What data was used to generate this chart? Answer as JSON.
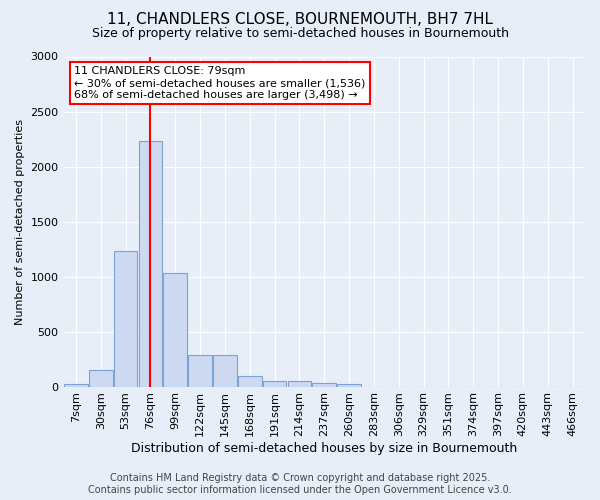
{
  "title": "11, CHANDLERS CLOSE, BOURNEMOUTH, BH7 7HL",
  "subtitle": "Size of property relative to semi-detached houses in Bournemouth",
  "xlabel": "Distribution of semi-detached houses by size in Bournemouth",
  "ylabel": "Number of semi-detached properties",
  "categories": [
    "7sqm",
    "30sqm",
    "53sqm",
    "76sqm",
    "99sqm",
    "122sqm",
    "145sqm",
    "168sqm",
    "191sqm",
    "214sqm",
    "237sqm",
    "260sqm",
    "283sqm",
    "306sqm",
    "329sqm",
    "351sqm",
    "374sqm",
    "397sqm",
    "420sqm",
    "443sqm",
    "466sqm"
  ],
  "values": [
    20,
    150,
    1235,
    2230,
    1030,
    290,
    290,
    100,
    55,
    55,
    30,
    20,
    0,
    0,
    0,
    0,
    0,
    0,
    0,
    0,
    0
  ],
  "bar_color": "#ccd9f0",
  "bar_edge_color": "#7ba4d4",
  "vline_x_index": 3,
  "vline_color": "red",
  "annotation_title": "11 CHANDLERS CLOSE: 79sqm",
  "annotation_line1": "← 30% of semi-detached houses are smaller (1,536)",
  "annotation_line2": "68% of semi-detached houses are larger (3,498) →",
  "annotation_box_color": "red",
  "footer1": "Contains HM Land Registry data © Crown copyright and database right 2025.",
  "footer2": "Contains public sector information licensed under the Open Government Licence v3.0.",
  "bg_color": "#e8eef8",
  "plot_bg_color": "#e8eef8",
  "ylim": [
    0,
    3000
  ],
  "yticks": [
    0,
    500,
    1000,
    1500,
    2000,
    2500,
    3000
  ],
  "title_fontsize": 11,
  "subtitle_fontsize": 9,
  "xlabel_fontsize": 9,
  "ylabel_fontsize": 8,
  "tick_fontsize": 8,
  "annotation_fontsize": 8,
  "footer_fontsize": 7
}
